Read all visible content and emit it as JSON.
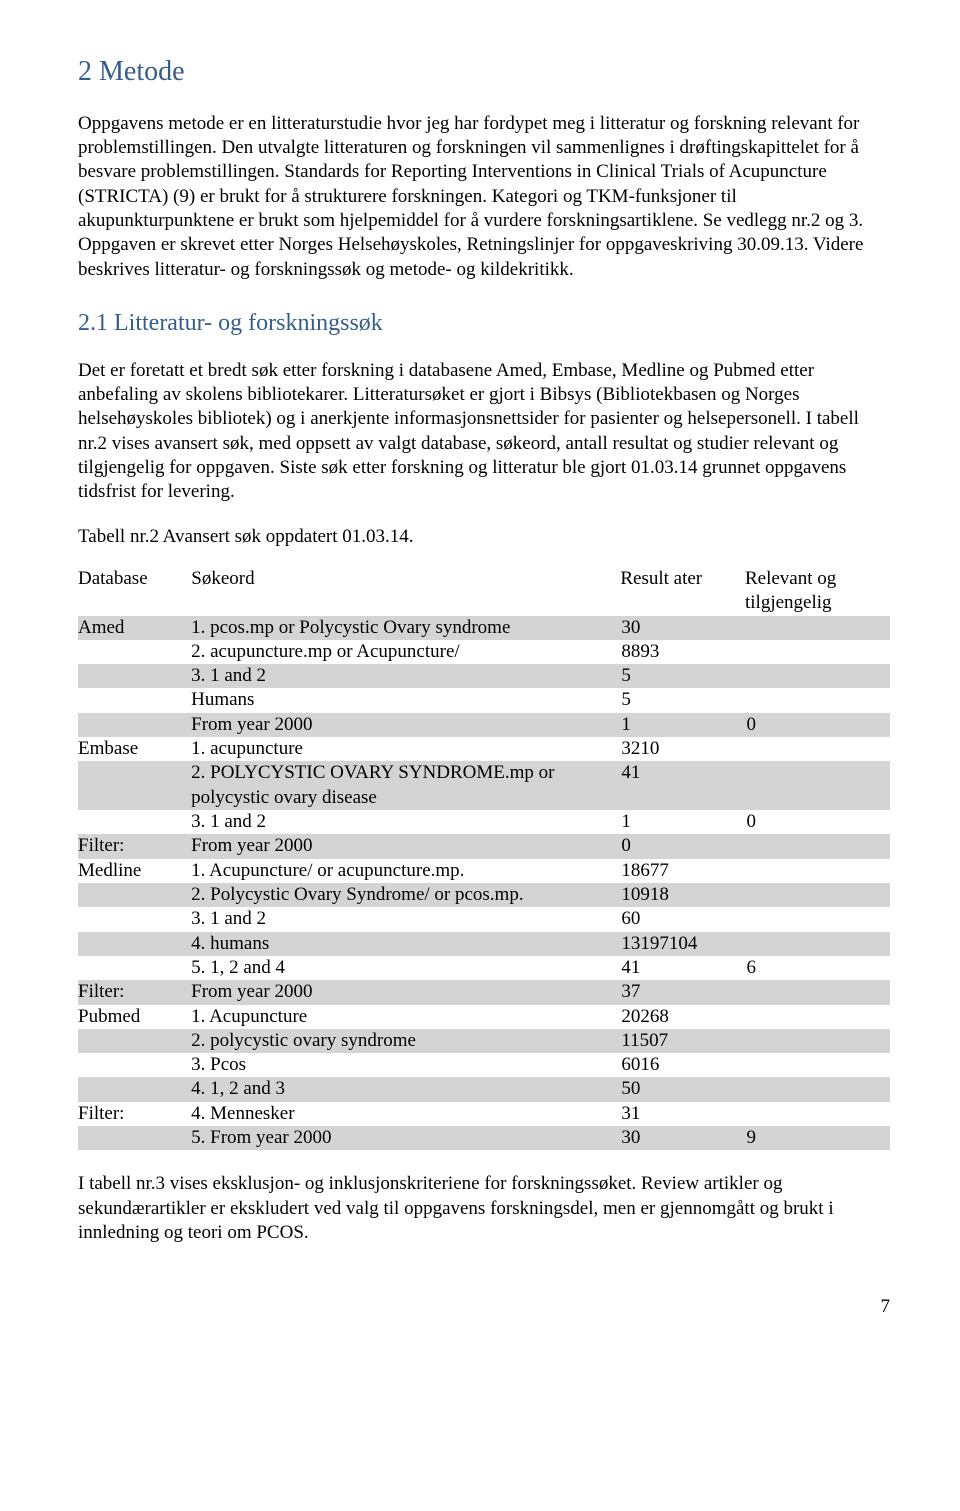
{
  "heading_main": "2 Metode",
  "para1": "Oppgavens metode er en litteraturstudie hvor jeg har fordypet meg i litteratur og forskning relevant for problemstillingen. Den utvalgte litteraturen og forskningen vil sammenlignes i drøftingskapittelet for å besvare problemstillingen. Standards for Reporting Interventions in Clinical Trials of Acupuncture (STRICTA) (9) er brukt for å strukturere forskningen. Kategori og TKM-funksjoner til akupunkturpunktene er brukt som hjelpemiddel for å vurdere forskningsartiklene. Se vedlegg nr.2 og 3. Oppgaven er skrevet etter Norges Helsehøyskoles, Retningslinjer for oppgaveskriving 30.09.13. Videre beskrives litteratur- og forskningssøk og metode- og kildekritikk.",
  "heading_sub": "2.1 Litteratur- og forskningssøk",
  "para2": "Det er foretatt et bredt søk etter forskning i databasene Amed, Embase, Medline og Pubmed etter anbefaling av skolens bibliotekarer. Litteratursøket er gjort i Bibsys (Bibliotekbasen og Norges helsehøyskoles bibliotek) og i anerkjente informasjonsnettsider for pasienter og helsepersonell. I tabell nr.2 vises avansert søk, med oppsett av valgt database, søkeord, antall resultat og studier relevant og tilgjengelig for oppgaven. Siste søk etter forskning og litteratur ble gjort 01.03.14 grunnet oppgavens tidsfrist for levering.",
  "table_caption": "Tabell nr.2 Avansert søk oppdatert 01.03.14.",
  "headers": {
    "db": "Database",
    "kw": "Søkeord",
    "res": "Result ater",
    "rel": "Relevant og tilgjengelig"
  },
  "rows": [
    {
      "db": "Amed",
      "kw": "1. pcos.mp or Polycystic Ovary syndrome",
      "res": "30",
      "rel": "",
      "shaded": true
    },
    {
      "db": "",
      "kw": "2. acupuncture.mp or Acupuncture/",
      "res": "8893",
      "rel": "",
      "shaded": false
    },
    {
      "db": "",
      "kw": "3. 1 and 2",
      "res": "5",
      "rel": "",
      "shaded": true
    },
    {
      "db": "",
      "kw": "Humans",
      "res": "5",
      "rel": "",
      "shaded": false
    },
    {
      "db": "",
      "kw": "From year 2000",
      "res": "1",
      "rel": "0",
      "shaded": true
    },
    {
      "db": "Embase",
      "kw": "1. acupuncture",
      "res": "3210",
      "rel": "",
      "shaded": false
    },
    {
      "db": "",
      "kw": "2. POLYCYSTIC OVARY SYNDROME.mp or polycystic ovary disease",
      "res": "41",
      "rel": "",
      "shaded": true
    },
    {
      "db": "",
      "kw": "3. 1 and 2",
      "res": "1",
      "rel": "0",
      "shaded": false
    },
    {
      "db": "Filter:",
      "kw": "From year 2000",
      "res": "0",
      "rel": "",
      "shaded": true
    },
    {
      "db": "Medline",
      "kw": "1. Acupuncture/ or acupuncture.mp.",
      "res": "18677",
      "rel": "",
      "shaded": false
    },
    {
      "db": "",
      "kw": "2. Polycystic Ovary Syndrome/ or pcos.mp.",
      "res": "10918",
      "rel": "",
      "shaded": true
    },
    {
      "db": "",
      "kw": "3. 1 and 2",
      "res": "60",
      "rel": "",
      "shaded": false
    },
    {
      "db": "",
      "kw": "4. humans",
      "res": "13197104",
      "rel": "",
      "shaded": true
    },
    {
      "db": "",
      "kw": "5. 1, 2 and 4",
      "res": "41",
      "rel": "6",
      "shaded": false
    },
    {
      "db": "Filter:",
      "kw": "From year 2000",
      "res": "37",
      "rel": "",
      "shaded": true
    },
    {
      "db": "Pubmed",
      "kw": "1. Acupuncture",
      "res": "20268",
      "rel": "",
      "shaded": false
    },
    {
      "db": "",
      "kw": "2. polycystic ovary syndrome",
      "res": "11507",
      "rel": "",
      "shaded": true
    },
    {
      "db": "",
      "kw": "3. Pcos",
      "res": "6016",
      "rel": "",
      "shaded": false
    },
    {
      "db": "",
      "kw": "4. 1, 2 and 3",
      "res": "50",
      "rel": "",
      "shaded": true
    },
    {
      "db": "Filter:",
      "kw": "4. Mennesker",
      "res": "31",
      "rel": "",
      "shaded": false
    },
    {
      "db": "",
      "kw": "5. From year 2000",
      "res": "30",
      "rel": "9",
      "shaded": true
    }
  ],
  "para3": "I tabell nr.3 vises eksklusjon- og inklusjonskriteriene for forskningssøket. Review artikler og sekundærartikler er ekskludert ved valg til oppgavens forskningsdel, men er gjennomgått og brukt i innledning og teori om PCOS.",
  "page_number": "7"
}
